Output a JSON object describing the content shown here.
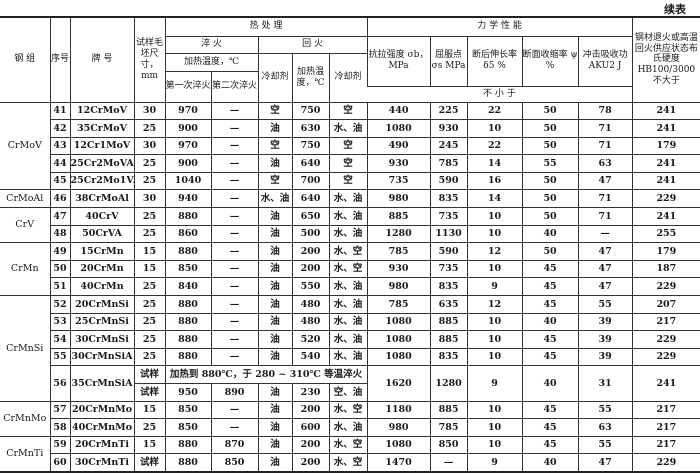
{
  "continued_label": "续表",
  "header": {
    "group": "钢 组",
    "seq": "序号",
    "grade": "牌 号",
    "size": "试样毛坯尺寸，mm",
    "heat_treatment": "热 处 理",
    "quench": "淬 火",
    "quench_temp": "加热温度，℃",
    "first_quench": "第一次淬火",
    "second_quench": "第二次淬火",
    "temper": "回 火",
    "coolant": "冷却剂",
    "temper_temp": "加热温度，℃",
    "coolant2": "冷却剂",
    "mechanical": "力 学 性 能",
    "tensile": "抗拉强度 σb，MPa",
    "yield": "屈服点 σs MPa",
    "elongation": "断后伸长率 δ5 %",
    "reduction": "断面收缩率 ψ %",
    "impact": "冲击吸收功 AKU2 J",
    "not_less_than": "不 小 于",
    "hardness": "钢材退火或高温回火供应状态布氏硬度 HB100/3000 不大于"
  },
  "groups": [
    {
      "name": "CrMoV",
      "rows": [
        [
          "41",
          "12CrMoV",
          "30",
          "970",
          "—",
          "空",
          "750",
          "空",
          "440",
          "225",
          "22",
          "50",
          "78",
          "241"
        ],
        [
          "42",
          "35CrMoV",
          "25",
          "900",
          "—",
          "油",
          "630",
          "水、油",
          "1080",
          "930",
          "10",
          "50",
          "71",
          "241"
        ],
        [
          "43",
          "12Cr1MoV",
          "30",
          "970",
          "—",
          "空",
          "750",
          "空",
          "490",
          "245",
          "22",
          "50",
          "71",
          "179"
        ],
        [
          "44",
          "25Cr2MoVA",
          "25",
          "900",
          "—",
          "油",
          "640",
          "空",
          "930",
          "785",
          "14",
          "55",
          "63",
          "241"
        ],
        [
          "45",
          "25Cr2Mo1VA",
          "25",
          "1040",
          "—",
          "空",
          "700",
          "空",
          "735",
          "590",
          "16",
          "50",
          "47",
          "241"
        ]
      ]
    },
    {
      "name": "CrMoAl",
      "rows": [
        [
          "46",
          "38CrMoAl",
          "30",
          "940",
          "—",
          "水、油",
          "640",
          "水、油",
          "980",
          "835",
          "14",
          "50",
          "71",
          "229"
        ]
      ]
    },
    {
      "name": "CrV",
      "rows": [
        [
          "47",
          "40CrV",
          "25",
          "880",
          "—",
          "油",
          "650",
          "水、油",
          "885",
          "735",
          "10",
          "50",
          "71",
          "241"
        ],
        [
          "48",
          "50CrVA",
          "25",
          "860",
          "—",
          "油",
          "500",
          "水、油",
          "1280",
          "1130",
          "10",
          "40",
          "—",
          "255"
        ]
      ]
    },
    {
      "name": "CrMn",
      "rows": [
        [
          "49",
          "15CrMn",
          "15",
          "880",
          "—",
          "油",
          "200",
          "水、空",
          "785",
          "590",
          "12",
          "50",
          "47",
          "179"
        ],
        [
          "50",
          "20CrMn",
          "15",
          "850",
          "—",
          "油",
          "200",
          "水、空",
          "930",
          "735",
          "10",
          "45",
          "47",
          "187"
        ],
        [
          "51",
          "40CrMn",
          "25",
          "840",
          "—",
          "油",
          "550",
          "水、油",
          "980",
          "835",
          "9",
          "45",
          "47",
          "229"
        ]
      ]
    },
    {
      "name": "CrMnSi",
      "rows": [
        [
          "52",
          "20CrMnSi",
          "25",
          "880",
          "—",
          "油",
          "480",
          "水、油",
          "785",
          "635",
          "12",
          "45",
          "55",
          "207"
        ],
        [
          "53",
          "25CrMnSi",
          "25",
          "880",
          "—",
          "油",
          "480",
          "水、油",
          "1080",
          "885",
          "10",
          "40",
          "39",
          "217"
        ],
        [
          "54",
          "30CrMnSi",
          "25",
          "880",
          "—",
          "油",
          "520",
          "水、油",
          "1080",
          "885",
          "10",
          "45",
          "39",
          "229"
        ],
        [
          "55",
          "30CrMnSiA",
          "25",
          "880",
          "—",
          "油",
          "540",
          "水、油",
          "1080",
          "835",
          "10",
          "45",
          "39",
          "229"
        ]
      ],
      "special": {
        "seq": "56",
        "grade": "35CrMnSiA",
        "sub1_size": "试样",
        "sub1_note": "加热到 880℃，于 280 ~ 310℃ 等温淬火",
        "sub2": [
          "试样",
          "950",
          "890",
          "油",
          "230",
          "空、油"
        ],
        "mech": [
          "1620",
          "1280",
          "9",
          "40",
          "31",
          "241"
        ]
      }
    },
    {
      "name": "CrMnMo",
      "rows": [
        [
          "57",
          "20CrMnMo",
          "15",
          "850",
          "—",
          "油",
          "200",
          "水、空",
          "1180",
          "885",
          "10",
          "45",
          "55",
          "217"
        ],
        [
          "58",
          "40CrMnMo",
          "25",
          "850",
          "—",
          "油",
          "600",
          "水、油",
          "980",
          "785",
          "10",
          "45",
          "63",
          "217"
        ]
      ]
    },
    {
      "name": "CrMnTi",
      "rows": [
        [
          "59",
          "20CrMnTi",
          "15",
          "880",
          "870",
          "油",
          "200",
          "水、空",
          "1080",
          "850",
          "10",
          "45",
          "55",
          "217"
        ],
        [
          "60",
          "30CrMnTi",
          "试样",
          "880",
          "850",
          "油",
          "200",
          "水、空",
          "1470",
          "—",
          "9",
          "40",
          "47",
          "229"
        ]
      ]
    }
  ]
}
